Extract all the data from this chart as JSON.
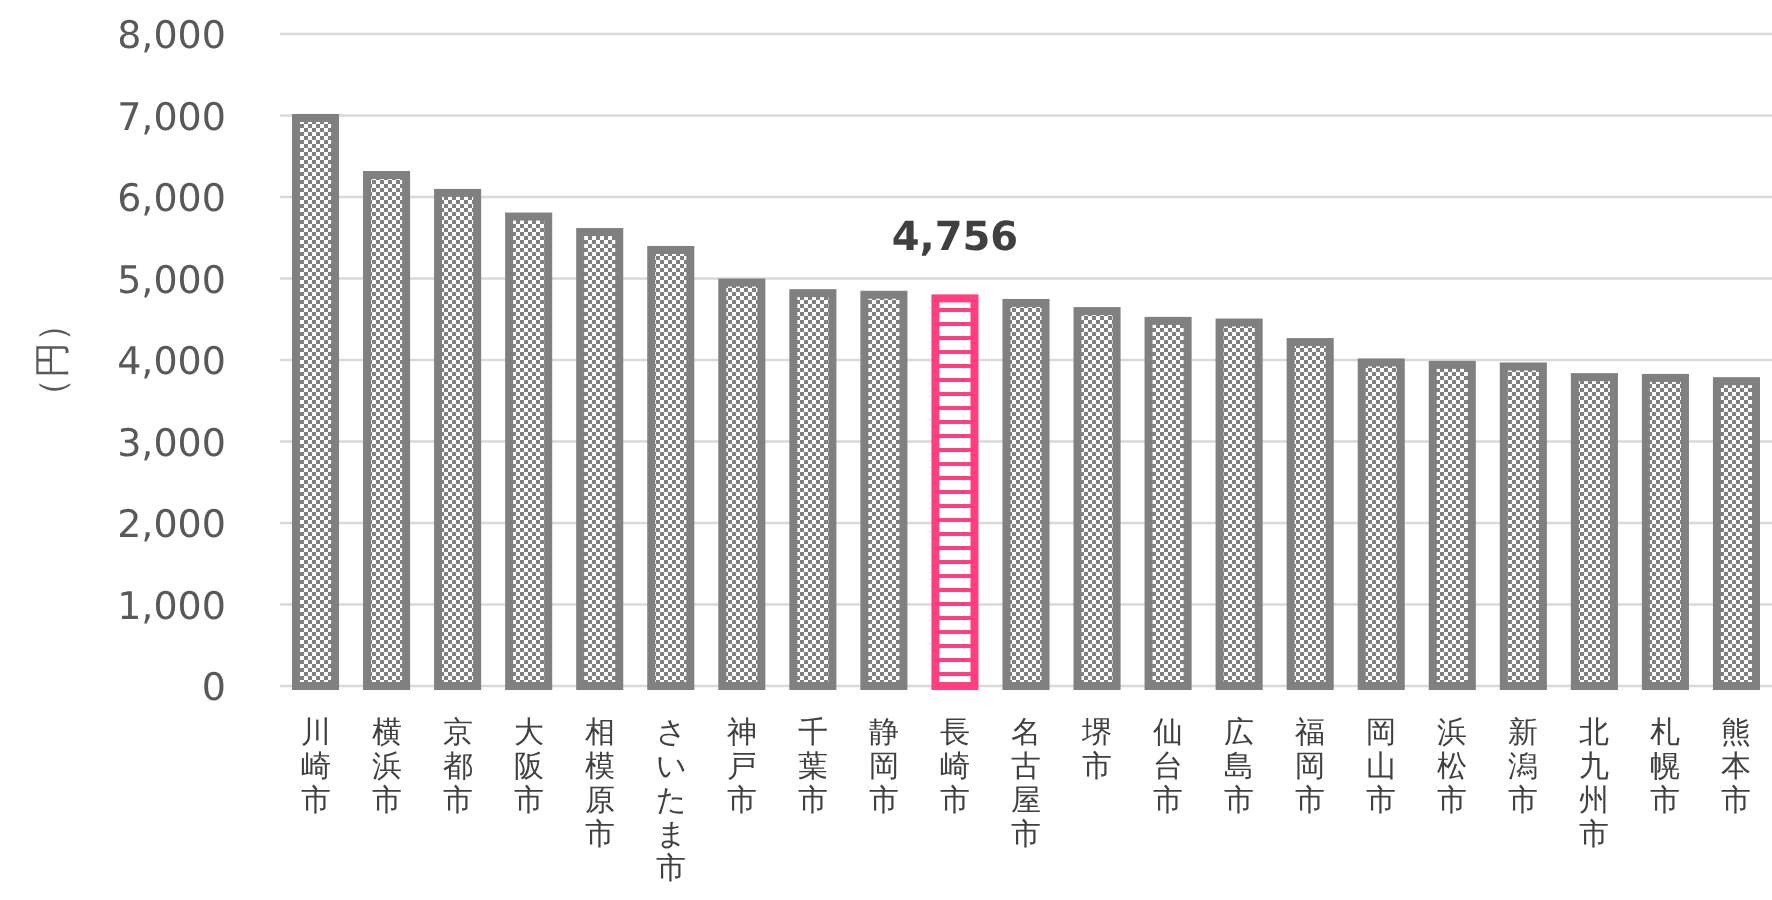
{
  "chart_data": {
    "type": "bar",
    "ylabel": "（円）",
    "categories": [
      "川崎市",
      "横浜市",
      "京都市",
      "大阪市",
      "相模原市",
      "さいたま市",
      "神戸市",
      "千葉市",
      "静岡市",
      "長崎市",
      "名古屋市",
      "堺市",
      "仙台市",
      "広島市",
      "福岡市",
      "岡山市",
      "浜松市",
      "新潟市",
      "北九州市",
      "札幌市",
      "熊本市"
    ],
    "values": [
      6970,
      6270,
      6050,
      5760,
      5570,
      5350,
      4950,
      4820,
      4800,
      4756,
      4700,
      4600,
      4480,
      4460,
      4220,
      3970,
      3940,
      3920,
      3790,
      3780,
      3740
    ],
    "colors": [
      "#808080",
      "#808080",
      "#808080",
      "#808080",
      "#808080",
      "#808080",
      "#808080",
      "#808080",
      "#808080",
      "#ff3f7f",
      "#808080",
      "#808080",
      "#808080",
      "#808080",
      "#808080",
      "#808080",
      "#808080",
      "#808080",
      "#808080",
      "#808080",
      "#808080"
    ],
    "value_labels": [
      null,
      null,
      null,
      null,
      null,
      null,
      null,
      null,
      null,
      "4,756",
      null,
      null,
      null,
      null,
      null,
      null,
      null,
      null,
      null,
      null,
      null
    ],
    "ylim": [
      0,
      8000
    ],
    "yticks": [
      {
        "value": 0,
        "label": "0"
      },
      {
        "value": 1000,
        "label": "1,000"
      },
      {
        "value": 2000,
        "label": "2,000"
      },
      {
        "value": 3000,
        "label": "3,000"
      },
      {
        "value": 4000,
        "label": "4,000"
      },
      {
        "value": 5000,
        "label": "5,000"
      },
      {
        "value": 6000,
        "label": "6,000"
      },
      {
        "value": 7000,
        "label": "7,000"
      },
      {
        "value": 8000,
        "label": "8,000"
      }
    ],
    "grid": "y"
  }
}
